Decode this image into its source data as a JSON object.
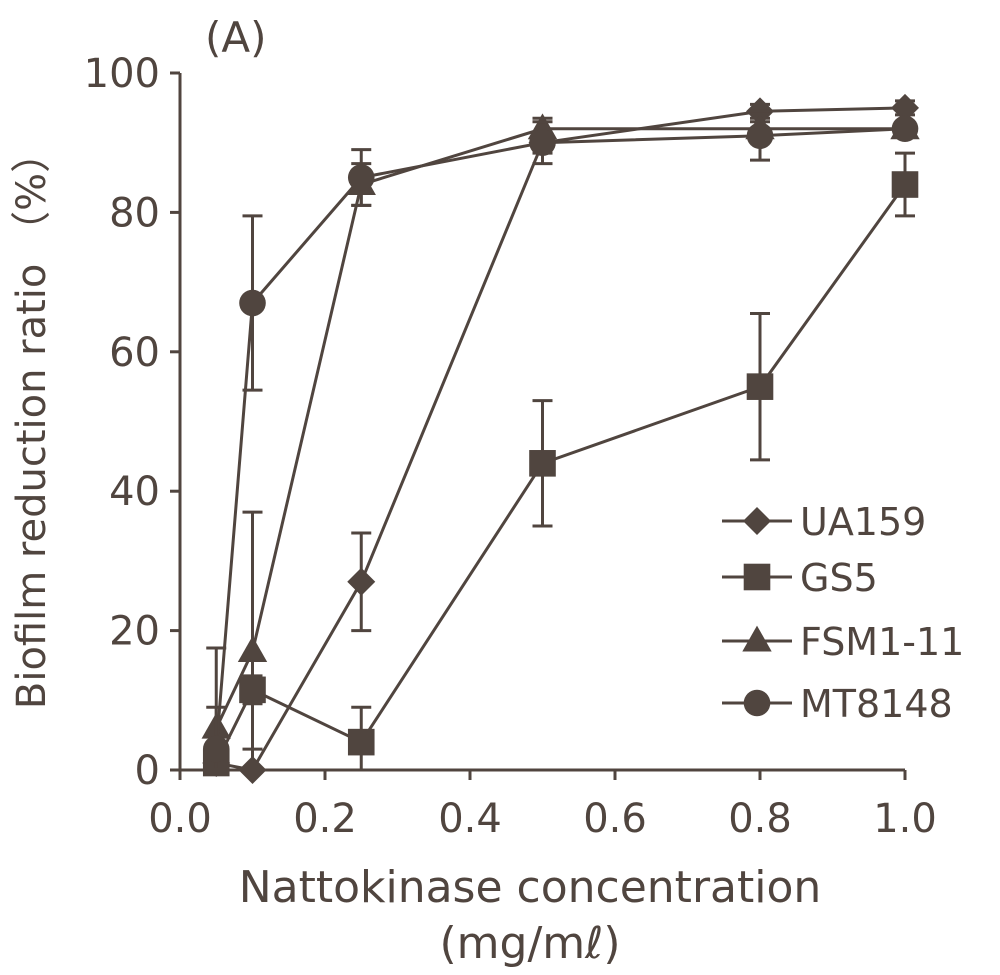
{
  "chart_data": {
    "type": "line",
    "panel_label": "(A)",
    "xlabel_line1": "Nattokinase concentration",
    "xlabel_line2": "(mg/mℓ)",
    "ylabel": "Biofilm reduction ratio （%）",
    "xlim": [
      0.0,
      1.0
    ],
    "ylim": [
      0,
      100
    ],
    "xticks": [
      "0.0",
      "0.2",
      "0.4",
      "0.6",
      "0.8",
      "1.0"
    ],
    "yticks": [
      "0",
      "20",
      "40",
      "60",
      "80",
      "100"
    ],
    "grid": false,
    "legend_position": "bottom-right",
    "x": [
      0.05,
      0.1,
      0.25,
      0.5,
      0.8,
      1.0
    ],
    "series": [
      {
        "name": "UA159",
        "marker": "diamond",
        "values": [
          1,
          0,
          27,
          90,
          94.5,
          95
        ],
        "errors": [
          1,
          3,
          7,
          1.5,
          1,
          1
        ]
      },
      {
        "name": "GS5",
        "marker": "square",
        "values": [
          1,
          11.5,
          4,
          44,
          55,
          84
        ],
        "errors": [
          2,
          2,
          5,
          9,
          10.5,
          4.5
        ]
      },
      {
        "name": "FSM1-11",
        "marker": "triangle",
        "values": [
          6,
          17,
          84,
          92,
          92,
          92
        ],
        "errors": [
          3,
          20,
          3,
          1.5,
          1,
          1
        ]
      },
      {
        "name": "MT8148",
        "marker": "circle",
        "values": [
          3,
          67,
          85,
          90,
          91,
          92
        ],
        "errors": [
          14.5,
          12.5,
          4,
          3,
          3.5,
          1
        ]
      }
    ],
    "color": "#50453f"
  }
}
